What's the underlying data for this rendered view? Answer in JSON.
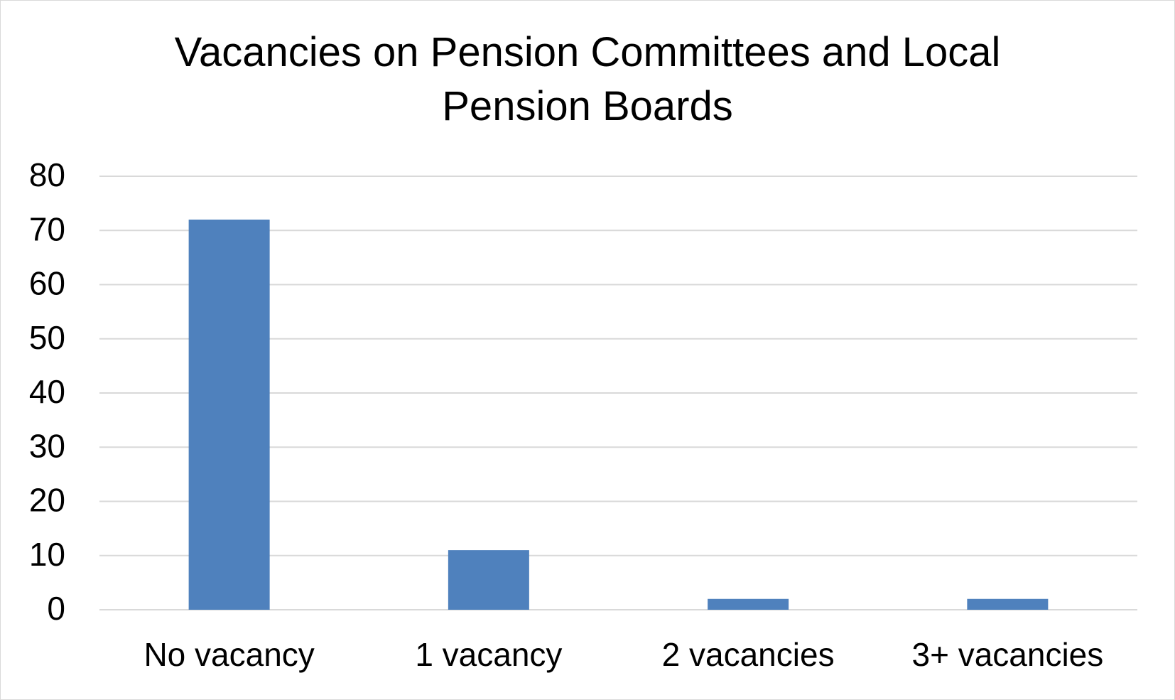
{
  "chart_data": {
    "type": "bar",
    "title": "Vacancies on Pension Committees and Local Pension Boards",
    "categories": [
      "No vacancy",
      "1 vacancy",
      "2 vacancies",
      "3+ vacancies"
    ],
    "values": [
      72,
      11,
      2,
      2
    ],
    "color": "#4f81bd",
    "ylim": [
      0,
      80
    ],
    "yticks": [
      0,
      10,
      20,
      30,
      40,
      50,
      60,
      70,
      80
    ],
    "grid": true
  }
}
